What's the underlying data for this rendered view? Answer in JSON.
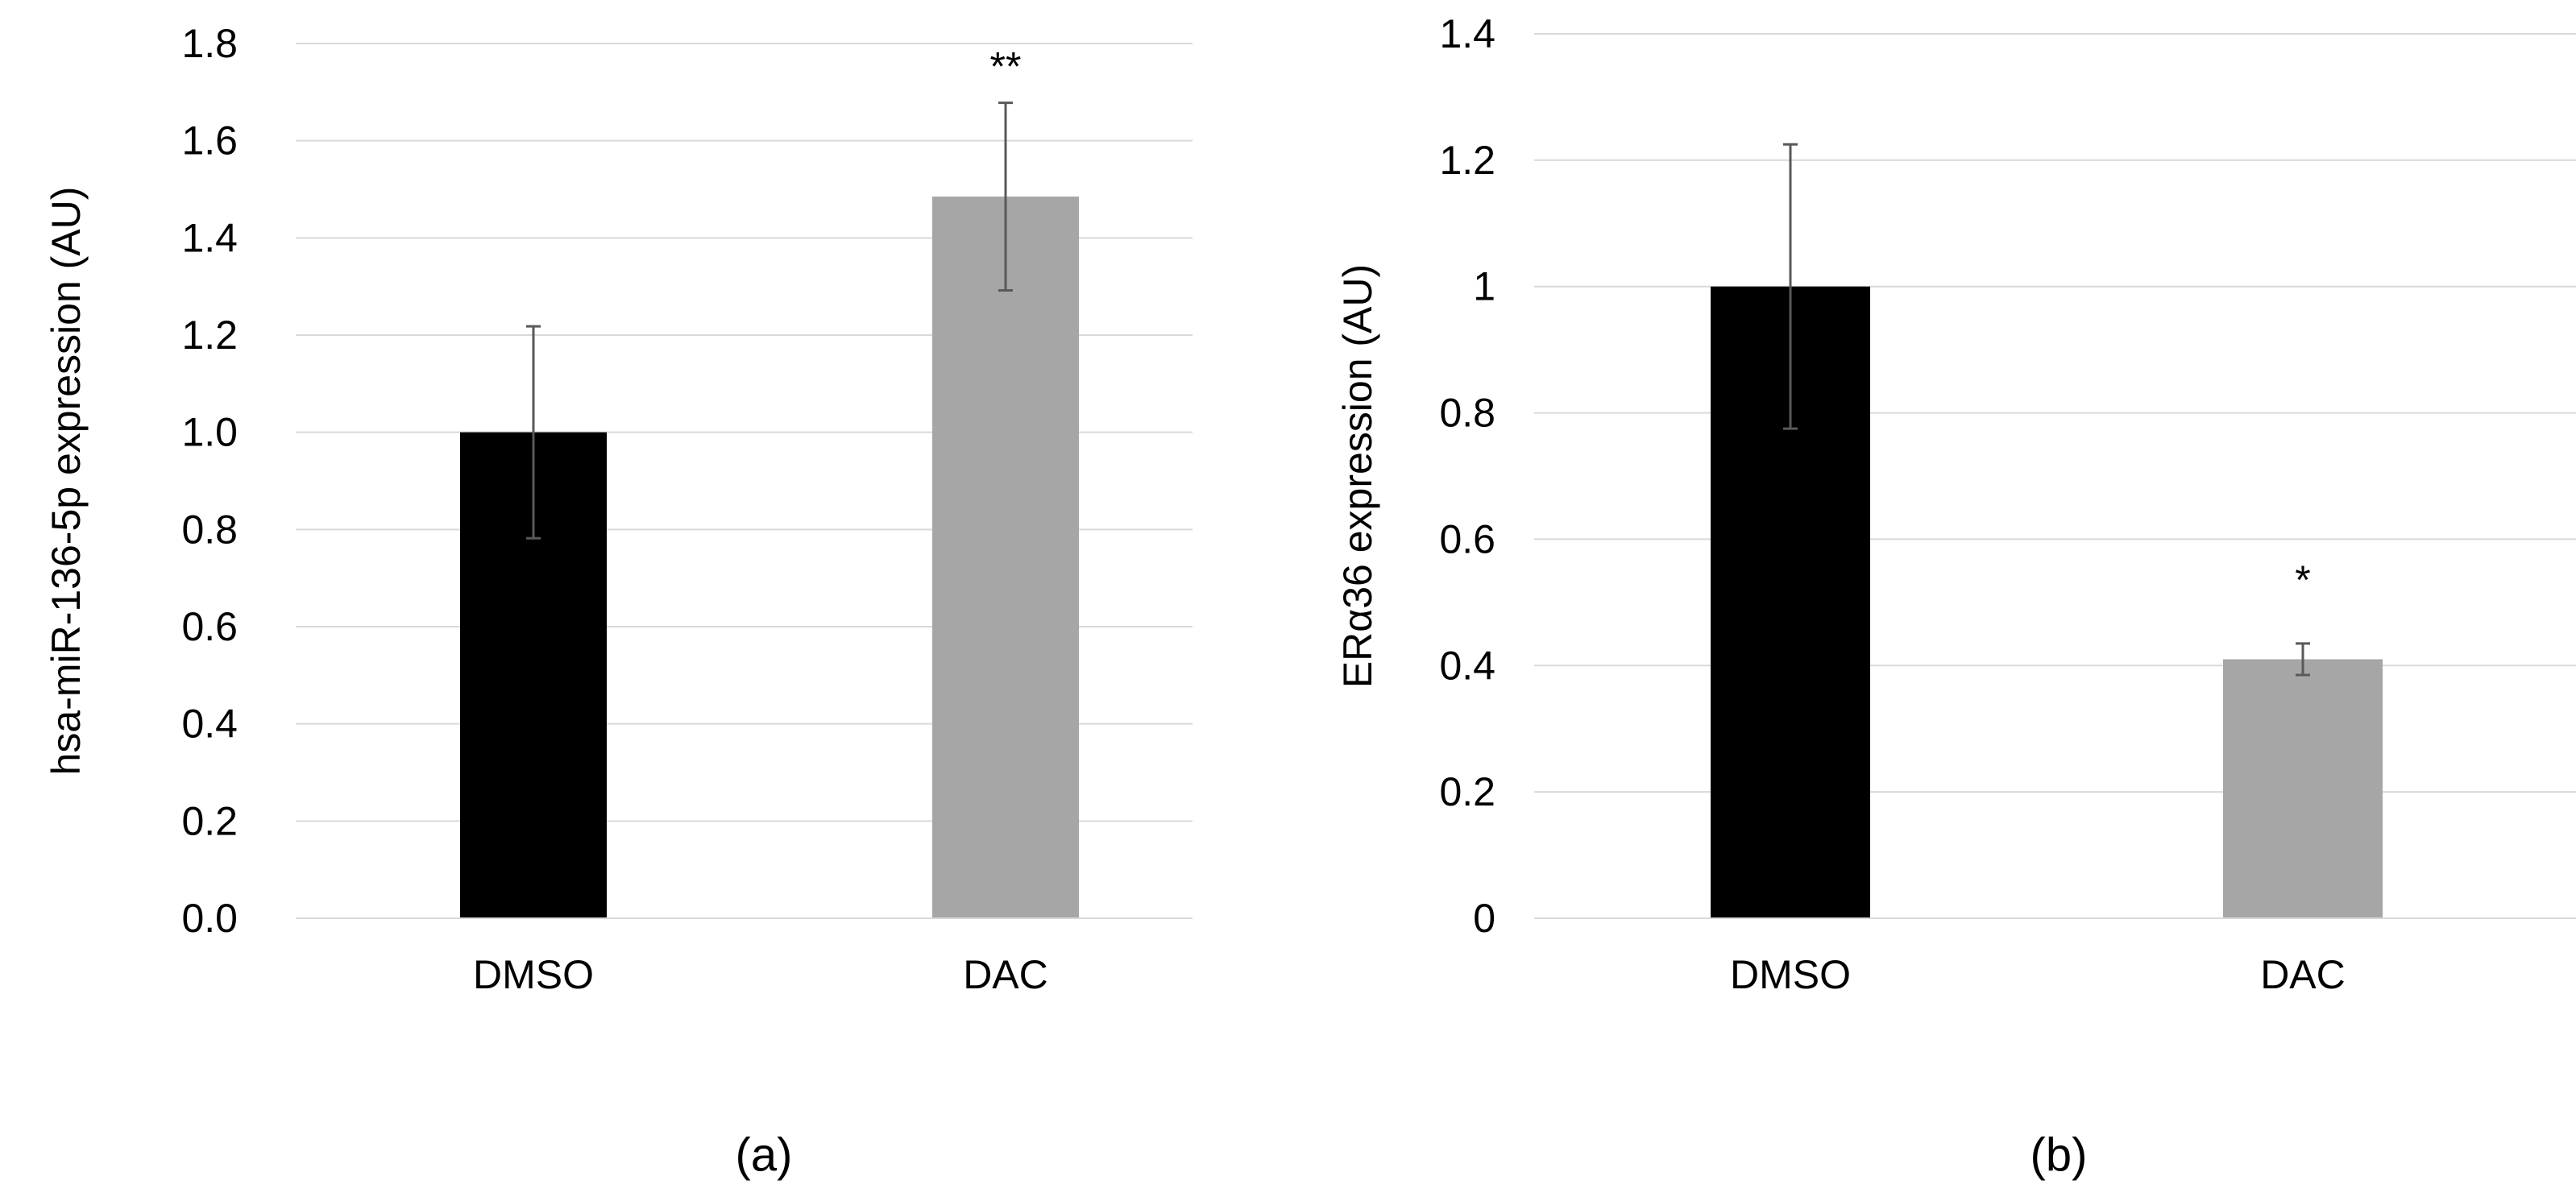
{
  "chart_data": [
    {
      "type": "bar",
      "panel_label": "(a)",
      "title": "",
      "xlabel": "",
      "ylabel": "hsa-miR-136-5p  expression (AU)",
      "categories": [
        "DMSO",
        "DAC"
      ],
      "values": [
        1.0,
        1.485
      ],
      "errors": [
        0.218,
        0.193
      ],
      "bar_colors": [
        "#000000",
        "#a6a6a6"
      ],
      "significance": [
        "",
        "**"
      ],
      "ylim": [
        0,
        1.8
      ],
      "yticks": [
        0.0,
        0.2,
        0.4,
        0.6,
        0.8,
        1.0,
        1.2,
        1.4,
        1.6,
        1.8
      ],
      "ytick_labels": [
        "0.0",
        "0.2",
        "0.4",
        "0.6",
        "0.8",
        "1.0",
        "1.2",
        "1.4",
        "1.6",
        "1.8"
      ],
      "grid": true,
      "legend": "none"
    },
    {
      "type": "bar",
      "panel_label": "(b)",
      "title": "",
      "xlabel": "",
      "ylabel": "ERα36 expression (AU)",
      "categories": [
        "DMSO",
        "DAC"
      ],
      "values": [
        1.0,
        0.41
      ],
      "errors": [
        0.225,
        0.025
      ],
      "bar_colors": [
        "#000000",
        "#a6a6a6"
      ],
      "significance": [
        "",
        "*"
      ],
      "ylim": [
        0,
        1.4
      ],
      "yticks": [
        0,
        0.2,
        0.4,
        0.6,
        0.8,
        1.0,
        1.2,
        1.4
      ],
      "ytick_labels": [
        "0",
        "0.2",
        "0.4",
        "0.6",
        "0.8",
        "1",
        "1.2",
        "1.4"
      ],
      "grid": true,
      "legend": "none"
    }
  ],
  "colors": {
    "gridline": "#d9d9d9",
    "axis_line": "#d9d9d9",
    "error_bar": "#595959",
    "text": "#000000"
  }
}
